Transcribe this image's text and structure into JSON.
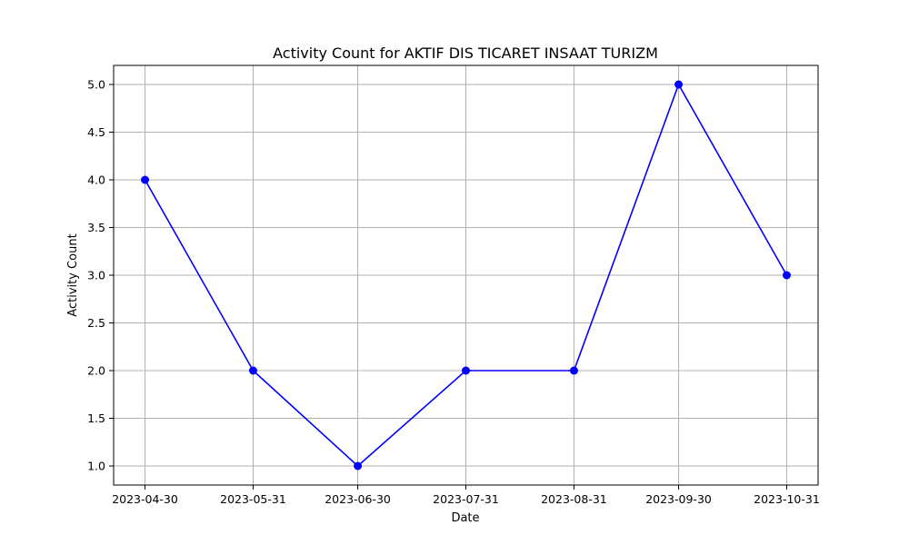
{
  "chart_data": {
    "type": "line",
    "title": "Activity Count for AKTIF DIS TICARET INSAAT TURIZM",
    "xlabel": "Date",
    "ylabel": "Activity Count",
    "x": [
      "2023-04-30",
      "2023-05-31",
      "2023-06-30",
      "2023-07-31",
      "2023-08-31",
      "2023-09-30",
      "2023-10-31"
    ],
    "values": [
      4,
      2,
      1,
      2,
      2,
      5,
      3
    ],
    "x_ticks": [
      "2023-04-30",
      "2023-05-31",
      "2023-06-30",
      "2023-07-31",
      "2023-08-31",
      "2023-09-30",
      "2023-10-31"
    ],
    "y_ticks": [
      1.0,
      1.5,
      2.0,
      2.5,
      3.0,
      3.5,
      4.0,
      4.5,
      5.0
    ],
    "ylim": [
      0.8,
      5.2
    ],
    "xlim": [
      "2023-04-21",
      "2023-11-09"
    ],
    "grid": true,
    "line_color": "#0000ff",
    "marker": "circle"
  }
}
